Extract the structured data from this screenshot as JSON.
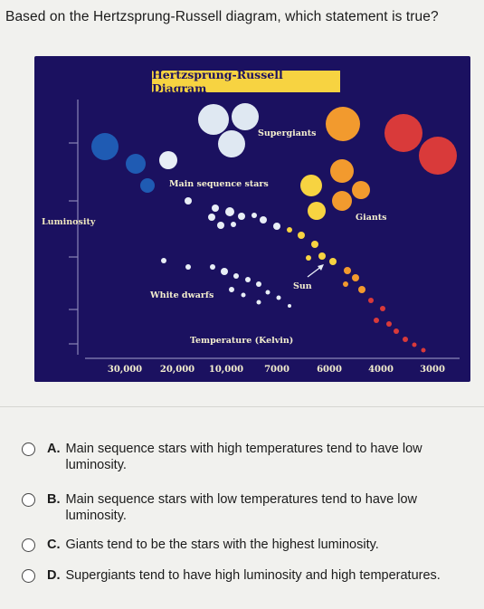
{
  "question": "Based on the Hertzsprung-Russell diagram, which statement is true?",
  "diagram": {
    "title": "Hertzsprung-Russell Diagram",
    "labels": {
      "supergiants": "Supergiants",
      "main_sequence": "Main sequence stars",
      "giants": "Giants",
      "luminosity": "Luminosity",
      "sun": "Sun",
      "white_dwarfs": "White dwarfs",
      "temperature": "Temperature (Kelvin)"
    },
    "temperature_ticks": [
      "30,000",
      "20,000",
      "10,000",
      "7000",
      "6000",
      "4000",
      "3000"
    ],
    "colors": {
      "background": "#1b1160",
      "title_box": "#f7d341",
      "hot_blue": "#1f5bb3",
      "white": "#e8eef6",
      "yellow": "#f7d341",
      "orange": "#f29a2e",
      "red": "#d93a3a"
    }
  },
  "options": [
    {
      "letter": "A.",
      "text": "Main sequence stars with high temperatures tend to have low luminosity."
    },
    {
      "letter": "B.",
      "text": "Main sequence stars with low temperatures tend to have low luminosity."
    },
    {
      "letter": "C.",
      "text": "Giants tend to be the stars with the highest luminosity."
    },
    {
      "letter": "D.",
      "text": "Supergiants tend to have high luminosity and high temperatures."
    }
  ]
}
